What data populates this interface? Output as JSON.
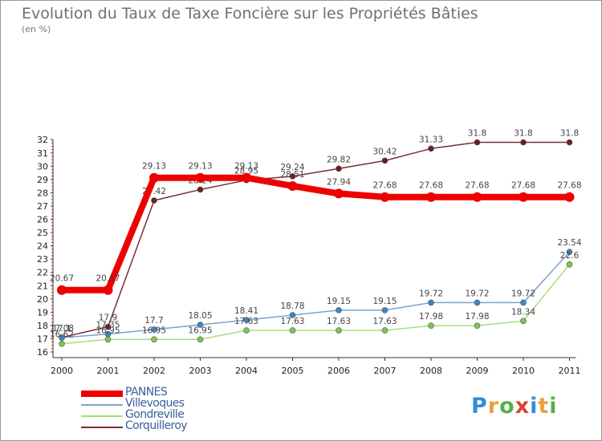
{
  "title": "Evolution du Taux de Taxe Foncière sur les Propriétés Bâties",
  "unit_label": "(en %)",
  "brand": [
    "P",
    "r",
    "o",
    "x",
    "i",
    "t",
    "i"
  ],
  "brand_colors": [
    "#2f8fd6",
    "#e8a13a",
    "#56b04a",
    "#d8452f",
    "#2f8fd6",
    "#e8a13a",
    "#56b04a"
  ],
  "chart_data": {
    "type": "line",
    "x": [
      "2000",
      "2001",
      "2002",
      "2003",
      "2004",
      "2005",
      "2006",
      "2007",
      "2008",
      "2009",
      "2010",
      "2011"
    ],
    "ylim": [
      16,
      32
    ],
    "yticks": [
      "16",
      "17",
      "18",
      "19",
      "20",
      "21",
      "22",
      "23",
      "24",
      "25",
      "26",
      "27",
      "28",
      "29",
      "30",
      "31",
      "32"
    ],
    "grid": false,
    "legend_position": "bottom-left",
    "series": [
      {
        "name": "Corquilleroy",
        "color": "#7a2e33",
        "marker": "#6b1f24",
        "values": [
          17.1,
          17.9,
          27.42,
          28.24,
          28.95,
          29.24,
          29.82,
          30.42,
          31.33,
          31.8,
          31.8,
          31.8
        ],
        "labels": [
          "17.1",
          "17.9",
          "27.42",
          "28.24",
          "28.95",
          "29.24",
          "29.82",
          "30.42",
          "31.33",
          "31.8",
          "31.8",
          "31.8"
        ]
      },
      {
        "name": "Villevoques",
        "color": "#7aa3cc",
        "marker": "#3d86c6",
        "values": [
          17.08,
          17.35,
          17.7,
          18.05,
          18.41,
          18.78,
          19.15,
          19.15,
          19.72,
          19.72,
          19.72,
          23.54
        ],
        "labels": [
          "17.08",
          "17.35",
          "17.7",
          "18.05",
          "18.41",
          "18.78",
          "19.15",
          "19.15",
          "19.72",
          "19.72",
          "19.72",
          "23.54"
        ]
      },
      {
        "name": "Gondreville",
        "color": "#a6dd7f",
        "marker": "#7bc84a",
        "values": [
          16.62,
          16.95,
          16.95,
          16.95,
          17.63,
          17.63,
          17.63,
          17.63,
          17.98,
          17.98,
          18.34,
          22.6
        ],
        "labels": [
          "16.62",
          "16.95",
          "16.95",
          "16.95",
          "17.63",
          "17.63",
          "17.63",
          "17.63",
          "17.98",
          "17.98",
          "18.34",
          "22.6"
        ]
      },
      {
        "name": "PANNES",
        "color": "#ee0000",
        "marker": "#ee0000",
        "thick": true,
        "values": [
          20.67,
          20.67,
          29.13,
          29.13,
          29.13,
          28.51,
          27.94,
          27.68,
          27.68,
          27.68,
          27.68,
          27.68
        ],
        "labels": [
          "20.67",
          "20.67",
          "29.13",
          "29.13",
          "29.13",
          "28.51",
          "27.94",
          "27.68",
          "27.68",
          "27.68",
          "27.68",
          "27.68"
        ]
      }
    ],
    "legend": [
      {
        "name": "PANNES",
        "color": "#ee0000",
        "thick": true
      },
      {
        "name": "Villevoques",
        "color": "#7aa3cc"
      },
      {
        "name": "Gondreville",
        "color": "#a6dd7f"
      },
      {
        "name": "Corquilleroy",
        "color": "#7a2e33"
      }
    ]
  }
}
